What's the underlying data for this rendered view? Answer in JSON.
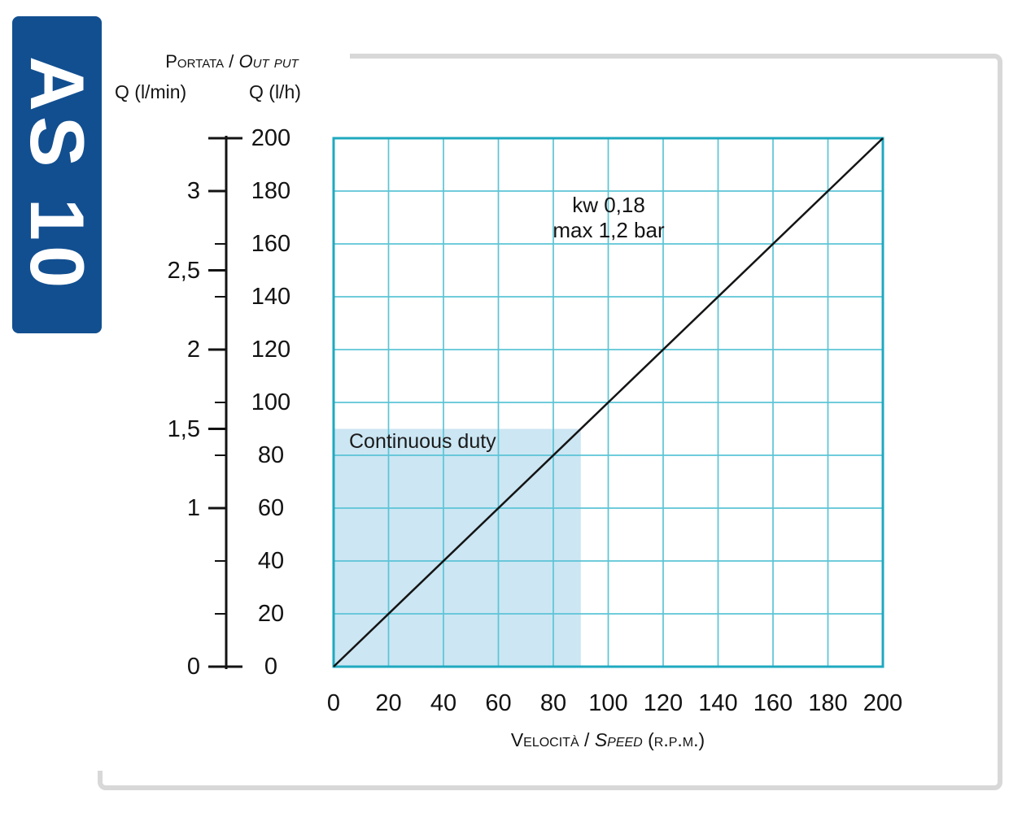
{
  "model": "AS 10",
  "output_header": {
    "main": "Portata",
    "sep": " / ",
    "italic": "Out put"
  },
  "chart_data": {
    "type": "line",
    "x_axis": {
      "title": {
        "main": "Velocità",
        "sep": " / ",
        "italic": "Speed",
        "unit": " (r.p.m.)"
      },
      "ticks": [
        0,
        20,
        40,
        60,
        80,
        100,
        120,
        140,
        160,
        180,
        200
      ],
      "range": [
        0,
        200
      ]
    },
    "y_axis_lh": {
      "header": "Q (l/h)",
      "ticks": [
        0,
        20,
        40,
        60,
        80,
        100,
        120,
        140,
        160,
        180,
        200
      ],
      "range": [
        0,
        200
      ]
    },
    "y_axis_lmin": {
      "header": "Q (l/min)",
      "labels": [
        {
          "label": "0",
          "lh": 0
        },
        {
          "label": "1",
          "lh": 60
        },
        {
          "label": "1,5",
          "lh": 90
        },
        {
          "label": "2",
          "lh": 120
        },
        {
          "label": "2,5",
          "lh": 150
        },
        {
          "label": "3",
          "lh": 180
        }
      ]
    },
    "series": [
      {
        "name": "output-vs-speed",
        "points": [
          [
            0,
            0
          ],
          [
            200,
            200
          ]
        ]
      }
    ],
    "annotation": [
      "kw 0,18",
      "max 1,2 bar"
    ],
    "continuous_duty": {
      "label": "Continuous duty",
      "x_range": [
        0,
        90
      ],
      "y_range": [
        0,
        90
      ]
    },
    "grid": true,
    "legend": false,
    "colors": {
      "grid": "#5cc4d6",
      "plot_border": "#1fa9c0",
      "duty_fill": "#cce6f3",
      "line": "#141414",
      "banner": "#124f90",
      "panel_border": "#d8d8d8"
    }
  }
}
